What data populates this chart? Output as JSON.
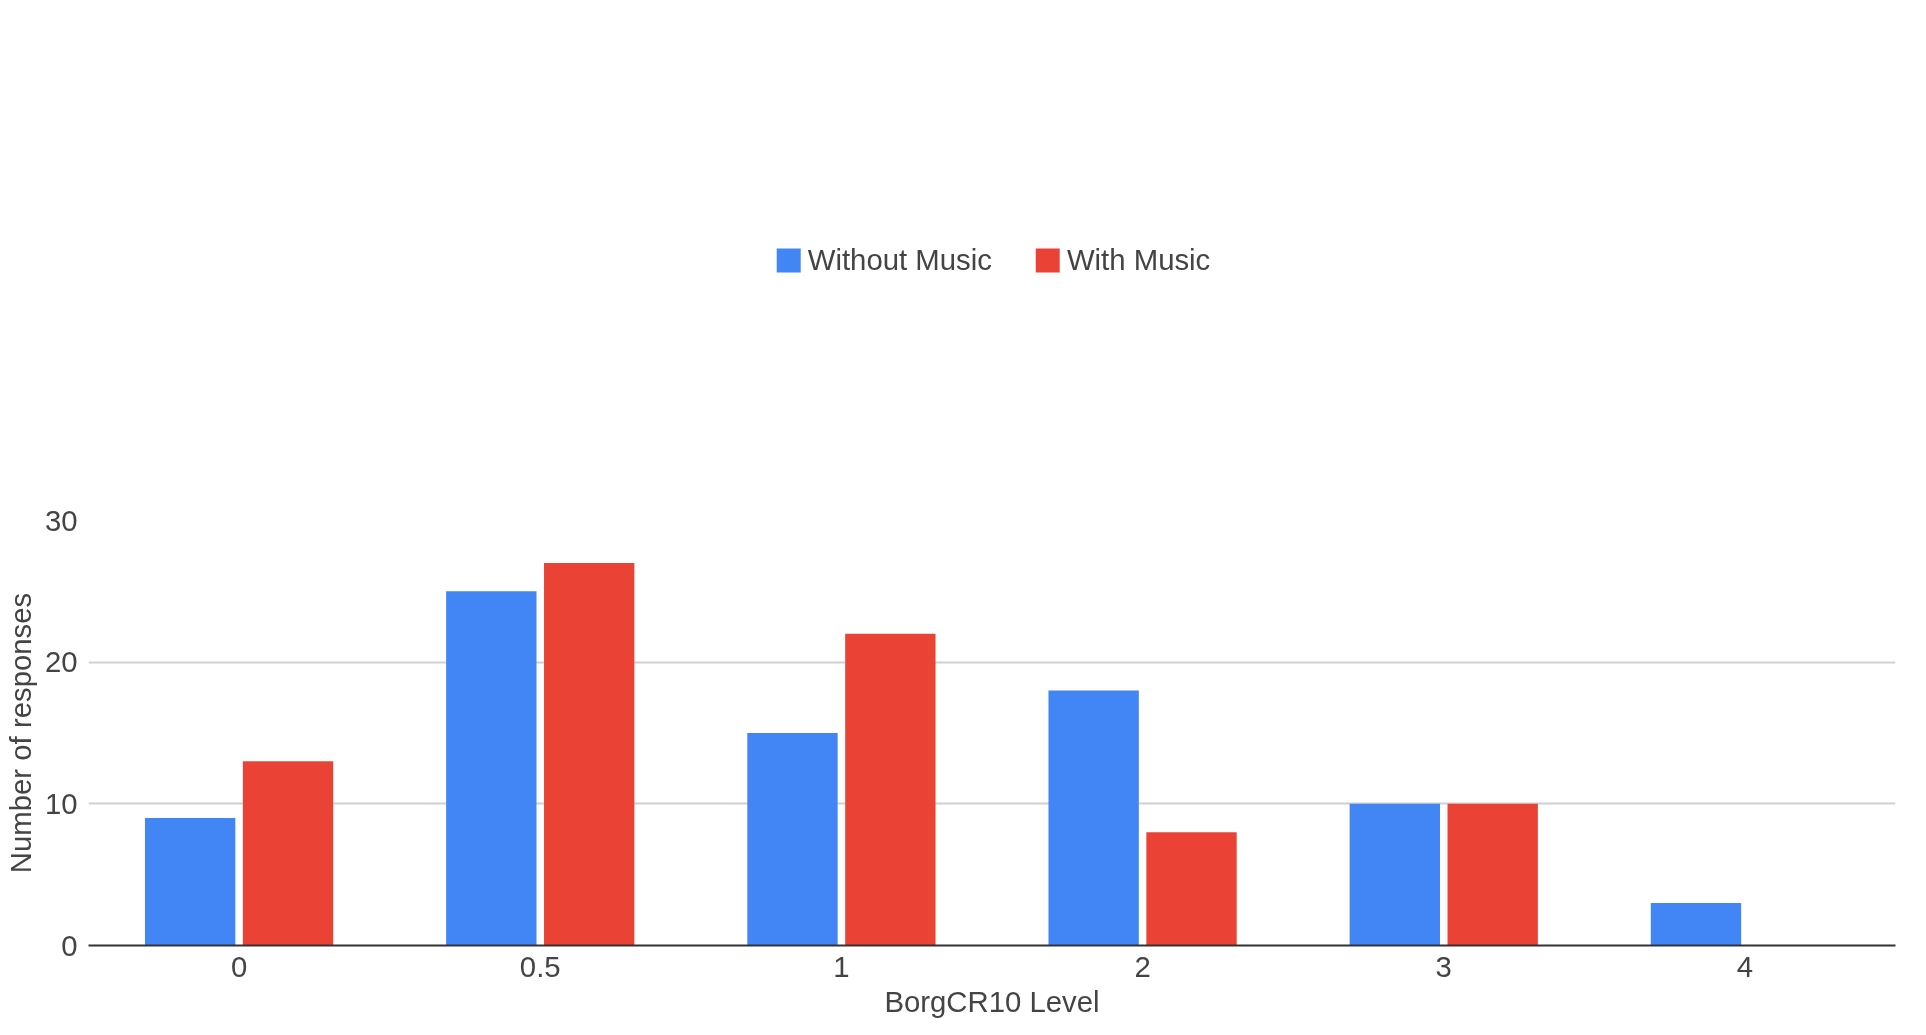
{
  "chart_data": {
    "type": "bar",
    "xlabel": "BorgCR10 Level",
    "ylabel": "Number of responses",
    "categories": [
      "0",
      "0.5",
      "1",
      "2",
      "3",
      "4"
    ],
    "series": [
      {
        "name": "Without Music",
        "color": "#4285f4",
        "values": [
          9,
          25,
          15,
          18,
          10,
          3
        ]
      },
      {
        "name": "With Music",
        "color": "#ea4335",
        "values": [
          13,
          27,
          22,
          8,
          10,
          0
        ]
      }
    ],
    "ylim": [
      0,
      30
    ],
    "yticks": [
      0,
      10,
      20,
      30
    ],
    "grid": "y",
    "legend": "top"
  }
}
